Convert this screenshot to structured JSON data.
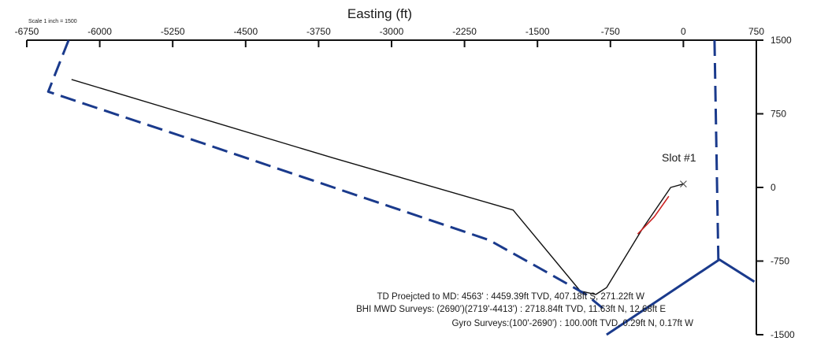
{
  "chart_data": {
    "type": "line",
    "title": "",
    "scale_note": "Scale 1 inch = 1500",
    "x_axis": {
      "title": "Easting (ft)",
      "position": "top",
      "range": [
        -6750,
        750
      ],
      "ticks": [
        -6750,
        -6000,
        -5250,
        -4500,
        -3750,
        -3000,
        -2250,
        -1500,
        -750,
        0,
        750
      ],
      "tick_labels": [
        "-6750",
        "-6000",
        "-5250",
        "-4500",
        "-3750",
        "-3000",
        "-2250",
        "-1500",
        "-750",
        "0",
        "750"
      ]
    },
    "y_axis": {
      "title": "",
      "position": "right",
      "range": [
        -1500,
        1500
      ],
      "ticks": [
        1500,
        750,
        0,
        -750,
        -1500
      ],
      "tick_labels": [
        "1500",
        "750",
        "0",
        "-750",
        "-1500"
      ]
    },
    "slot_label": "Slot #1",
    "series": [
      {
        "color": "#111111",
        "style": "solid",
        "points": [
          [
            -6290,
            1100
          ],
          [
            -3600,
            300
          ],
          [
            -1750,
            -230
          ],
          [
            -1060,
            -1055
          ],
          [
            -900,
            -1090
          ],
          [
            -790,
            -1020
          ],
          [
            -420,
            -420
          ],
          [
            -130,
            0
          ],
          [
            0,
            35
          ]
        ]
      },
      {
        "color": "#cc2222",
        "style": "solid",
        "points": [
          [
            -470,
            -475
          ],
          [
            -300,
            -300
          ],
          [
            -150,
            -90
          ]
        ]
      },
      {
        "color": "#1a3a8c",
        "style": "dashed",
        "points": [
          [
            -6320,
            1500
          ],
          [
            -6530,
            975
          ],
          [
            -6000,
            800
          ],
          [
            -5000,
            470
          ],
          [
            -4000,
            135
          ],
          [
            -3000,
            -200
          ],
          [
            -2000,
            -535
          ],
          [
            -1500,
            -810
          ],
          [
            -1000,
            -1090
          ],
          [
            -830,
            -1230
          ]
        ]
      },
      {
        "color": "#1a3a8c",
        "style": "dashed",
        "points": [
          [
            320,
            1500
          ],
          [
            360,
            -735
          ]
        ]
      },
      {
        "color": "#1a3a8c",
        "style": "solid",
        "points": [
          [
            -790,
            -1500
          ],
          [
            370,
            -735
          ],
          [
            730,
            -960
          ]
        ]
      }
    ],
    "annotations": [
      "TD Proejcted to MD: 4563' : 4459.39ft TVD, 407.18ft S, 271.22ft W",
      "BHI MWD Surveys: (2690')(2719'-4413') : 2718.84ft TVD, 11.63ft N, 12.68ft E",
      "Gyro Surveys:(100'-2690') : 100.00ft TVD, 0.29ft N, 0.17ft W"
    ],
    "grid": false,
    "legend": "none"
  }
}
